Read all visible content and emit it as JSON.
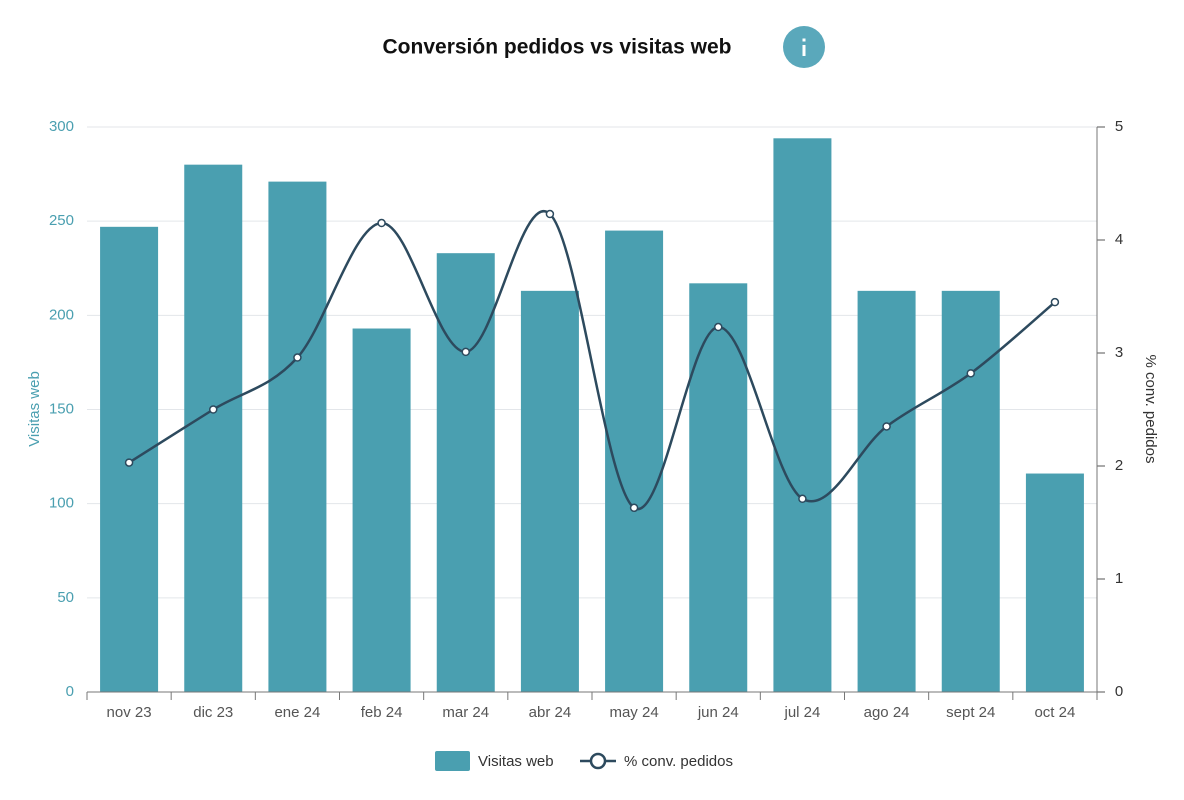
{
  "chart_data": {
    "type": "bar-line",
    "title": "Conversión pedidos vs visitas web",
    "y_label": "Visitas web",
    "y2_label": "% conv. pedidos",
    "categories": [
      "nov 23",
      "dic 23",
      "ene 24",
      "feb 24",
      "mar 24",
      "abr 24",
      "may 24",
      "jun 24",
      "jul 24",
      "ago 24",
      "sept 24",
      "oct 24"
    ],
    "series": [
      {
        "name": "Visitas web",
        "type": "bar",
        "color": "#4a9fb0",
        "values": [
          247,
          280,
          271,
          193,
          233,
          213,
          245,
          217,
          294,
          213,
          213,
          116
        ]
      },
      {
        "name": "% conv. pedidos",
        "type": "line",
        "axis": "y2",
        "color": "#2d4a5e",
        "values": [
          2.03,
          2.5,
          2.96,
          4.15,
          3.01,
          4.23,
          1.63,
          3.23,
          1.71,
          2.35,
          2.82,
          3.45
        ]
      }
    ],
    "ylim": [
      0,
      300
    ],
    "yticks": [
      0,
      50,
      100,
      150,
      200,
      250,
      300
    ],
    "y2lim": [
      0,
      5
    ],
    "y2ticks": [
      0,
      1,
      2,
      3,
      4,
      5
    ],
    "grid": true,
    "legend": "bottom"
  }
}
